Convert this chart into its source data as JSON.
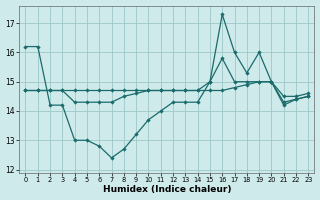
{
  "xlabel": "Humidex (Indice chaleur)",
  "background_color": "#ceeaea",
  "grid_color": "#9ec8c8",
  "line_color": "#1a6b6b",
  "x_values": [
    0,
    1,
    2,
    3,
    4,
    5,
    6,
    7,
    8,
    9,
    10,
    11,
    12,
    13,
    14,
    15,
    16,
    17,
    18,
    19,
    20,
    21,
    22,
    23
  ],
  "series_spike": [
    16.2,
    16.2,
    14.2,
    14.2,
    13.0,
    13.0,
    12.8,
    12.4,
    12.7,
    13.2,
    13.7,
    14.0,
    14.3,
    14.3,
    14.3,
    15.0,
    17.3,
    16.0,
    15.3,
    16.0,
    15.0,
    14.2,
    14.4,
    14.5
  ],
  "series_rise": [
    14.7,
    14.7,
    14.7,
    14.7,
    14.3,
    14.3,
    14.3,
    14.3,
    14.5,
    14.6,
    14.7,
    14.7,
    14.7,
    14.7,
    14.7,
    15.0,
    15.8,
    15.0,
    15.0,
    15.0,
    15.0,
    14.3,
    14.4,
    14.5
  ],
  "series_flat": [
    14.7,
    14.7,
    14.7,
    14.7,
    14.7,
    14.7,
    14.7,
    14.7,
    14.7,
    14.7,
    14.7,
    14.7,
    14.7,
    14.7,
    14.7,
    14.7,
    14.7,
    14.8,
    14.9,
    15.0,
    15.0,
    14.5,
    14.5,
    14.6
  ],
  "ylim": [
    11.9,
    17.6
  ],
  "yticks": [
    12,
    13,
    14,
    15,
    16,
    17
  ],
  "xlim": [
    -0.5,
    23.5
  ]
}
